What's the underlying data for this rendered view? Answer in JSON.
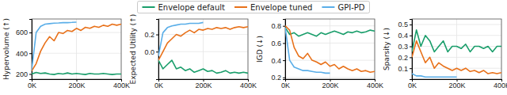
{
  "chart_data": {
    "type": "line",
    "legend": "top",
    "grid": true,
    "x": [
      0,
      20000,
      40000,
      60000,
      80000,
      100000,
      120000,
      140000,
      160000,
      180000,
      200000,
      220000,
      240000,
      260000,
      280000,
      300000,
      320000,
      340000,
      360000,
      380000,
      400000
    ],
    "xlim": [
      0,
      400000
    ],
    "xticks": [
      {
        "value": 0,
        "label": "0K"
      },
      {
        "value": 200000,
        "label": "200K"
      },
      {
        "value": 400000,
        "label": "400K"
      }
    ],
    "series": [
      {
        "name": "Envelope default",
        "color": "#1a9e6b"
      },
      {
        "name": "Envelope tuned",
        "color": "#e8711a"
      },
      {
        "name": "GPI-PD",
        "color": "#5aaee8"
      }
    ],
    "panels": [
      {
        "ylabel": "Hypervolume (↑)",
        "ylim": [
          150,
          730
        ],
        "yticks": [
          200,
          400,
          600
        ],
        "series": [
          {
            "values": [
              200,
              215,
              205,
              210,
              200,
              195,
              205,
              200,
              210,
              200,
              205,
              200,
              195,
              205,
              200,
              200,
              205,
              200,
              195,
              200,
              200
            ]
          },
          {
            "values": [
              230,
              300,
              420,
              500,
              560,
              520,
              600,
              590,
              620,
              610,
              640,
              620,
              650,
              640,
              660,
              650,
              670,
              660,
              680,
              670,
              680
            ]
          },
          {
            "values": [
              240,
              600,
              660,
              680,
              685,
              690,
              692,
              695,
              695,
              697,
              700,
              null,
              null,
              null,
              null,
              null,
              null,
              null,
              null,
              null,
              null
            ]
          }
        ]
      },
      {
        "ylabel": "Expected Utility (↑)",
        "ylim": [
          -0.32,
          0.38
        ],
        "yticks": [
          {
            "value": 0,
            "label": "0.0"
          },
          0.2
        ],
        "series": [
          {
            "values": [
              -0.1,
              -0.2,
              -0.15,
              -0.1,
              -0.2,
              -0.18,
              -0.22,
              -0.2,
              -0.24,
              -0.22,
              -0.2,
              -0.23,
              -0.22,
              -0.25,
              -0.24,
              -0.22,
              -0.25,
              -0.24,
              -0.25,
              -0.24,
              -0.25
            ]
          },
          {
            "values": [
              -0.1,
              0.0,
              0.1,
              0.15,
              0.2,
              0.18,
              0.22,
              0.25,
              0.22,
              0.26,
              0.25,
              0.27,
              0.26,
              0.28,
              0.27,
              0.28,
              0.26,
              0.28,
              0.29,
              0.28,
              0.29
            ]
          },
          {
            "values": [
              -0.05,
              0.22,
              0.28,
              0.3,
              0.31,
              0.32,
              0.32,
              0.33,
              0.33,
              0.33,
              0.34,
              null,
              null,
              null,
              null,
              null,
              null,
              null,
              null,
              null,
              null
            ]
          }
        ]
      },
      {
        "ylabel": "IGD (↓)",
        "ylim": [
          0.18,
          0.88
        ],
        "yticks": [
          0.2,
          0.4,
          0.6,
          0.8
        ],
        "series": [
          {
            "values": [
              0.78,
              0.7,
              0.72,
              0.68,
              0.7,
              0.72,
              0.7,
              0.68,
              0.72,
              0.7,
              0.72,
              0.74,
              0.72,
              0.7,
              0.73,
              0.72,
              0.74,
              0.72,
              0.73,
              0.75,
              0.74
            ]
          },
          {
            "values": [
              0.8,
              0.75,
              0.55,
              0.45,
              0.42,
              0.48,
              0.4,
              0.38,
              0.35,
              0.38,
              0.33,
              0.35,
              0.3,
              0.33,
              0.3,
              0.28,
              0.3,
              0.27,
              0.28,
              0.26,
              0.27
            ]
          },
          {
            "values": [
              0.78,
              0.4,
              0.32,
              0.3,
              0.28,
              0.28,
              0.27,
              0.26,
              0.26,
              0.25,
              0.25,
              null,
              null,
              null,
              null,
              null,
              null,
              null,
              null,
              null,
              null
            ]
          }
        ]
      },
      {
        "ylabel": "Sparsity (↓)",
        "ylim": [
          0,
          0.55
        ],
        "yticks": [
          0.1,
          0.2,
          0.3,
          0.4,
          0.5
        ],
        "series": [
          {
            "values": [
              0.25,
              0.45,
              0.3,
              0.4,
              0.35,
              0.25,
              0.3,
              0.35,
              0.25,
              0.3,
              0.3,
              0.28,
              0.32,
              0.25,
              0.3,
              0.3,
              0.28,
              0.3,
              0.25,
              0.3,
              0.3
            ]
          },
          {
            "values": [
              0.2,
              0.35,
              0.25,
              0.15,
              0.2,
              0.1,
              0.15,
              0.12,
              0.1,
              0.08,
              0.1,
              0.08,
              0.1,
              0.07,
              0.08,
              0.06,
              0.08,
              0.05,
              0.06,
              0.05,
              0.06
            ]
          },
          {
            "values": [
              0.05,
              0.03,
              0.03,
              0.02,
              0.02,
              0.02,
              0.02,
              0.02,
              0.02,
              0.02,
              0.02,
              null,
              null,
              null,
              null,
              null,
              null,
              null,
              null,
              null,
              null
            ]
          }
        ]
      }
    ]
  }
}
